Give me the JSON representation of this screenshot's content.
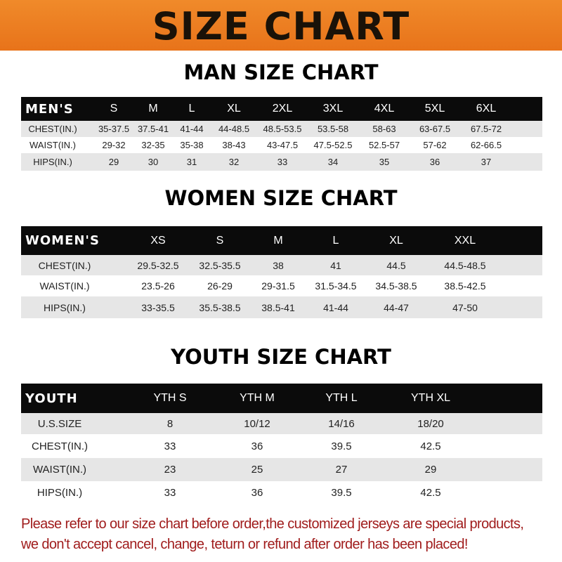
{
  "title": "SIZE CHART",
  "tables": [
    {
      "title": "MAN SIZE CHART",
      "header": [
        "MEN'S",
        "S",
        "M",
        "L",
        "XL",
        "2XL",
        "3XL",
        "4XL",
        "5XL",
        "6XL"
      ],
      "rows": [
        [
          "CHEST(IN.)",
          "35-37.5",
          "37.5-41",
          "41-44",
          "44-48.5",
          "48.5-53.5",
          "53.5-58",
          "58-63",
          "63-67.5",
          "67.5-72"
        ],
        [
          "WAIST(IN.)",
          "29-32",
          "32-35",
          "35-38",
          "38-43",
          "43-47.5",
          "47.5-52.5",
          "52.5-57",
          "57-62",
          "62-66.5"
        ],
        [
          "HIPS(IN.)",
          "29",
          "30",
          "31",
          "32",
          "33",
          "34",
          "35",
          "36",
          "37"
        ]
      ]
    },
    {
      "title": "WOMEN SIZE CHART",
      "header": [
        "WOMEN'S",
        "XS",
        "S",
        "M",
        "L",
        "XL",
        "XXL"
      ],
      "rows": [
        [
          "CHEST(IN.)",
          "29.5-32.5",
          "32.5-35.5",
          "38",
          "41",
          "44.5",
          "44.5-48.5"
        ],
        [
          "WAIST(IN.)",
          "23.5-26",
          "26-29",
          "29-31.5",
          "31.5-34.5",
          "34.5-38.5",
          "38.5-42.5"
        ],
        [
          "HIPS(IN.)",
          "33-35.5",
          "35.5-38.5",
          "38.5-41",
          "41-44",
          "44-47",
          "47-50"
        ]
      ]
    },
    {
      "title": "YOUTH SIZE CHART",
      "header": [
        "YOUTH",
        "YTH S",
        "YTH M",
        "YTH L",
        "YTH XL"
      ],
      "rows": [
        [
          "U.S.SIZE",
          "8",
          "10/12",
          "14/16",
          "18/20"
        ],
        [
          "CHEST(IN.)",
          "33",
          "36",
          "39.5",
          "42.5"
        ],
        [
          "WAIST(IN.)",
          "23",
          "25",
          "27",
          "29"
        ],
        [
          "HIPS(IN.)",
          "33",
          "36",
          "39.5",
          "42.5"
        ]
      ]
    }
  ],
  "footer": {
    "line1": "Please refer to our size chart before order,the customized jerseys are special products,",
    "line2": "we don't accept cancel, change, teturn or refund after order has been placed!"
  },
  "colors": {
    "banner": "#e8731a",
    "header_row": "#0b0b0b",
    "stripe": "#e6e6e6",
    "notice": "#a01c1c"
  }
}
